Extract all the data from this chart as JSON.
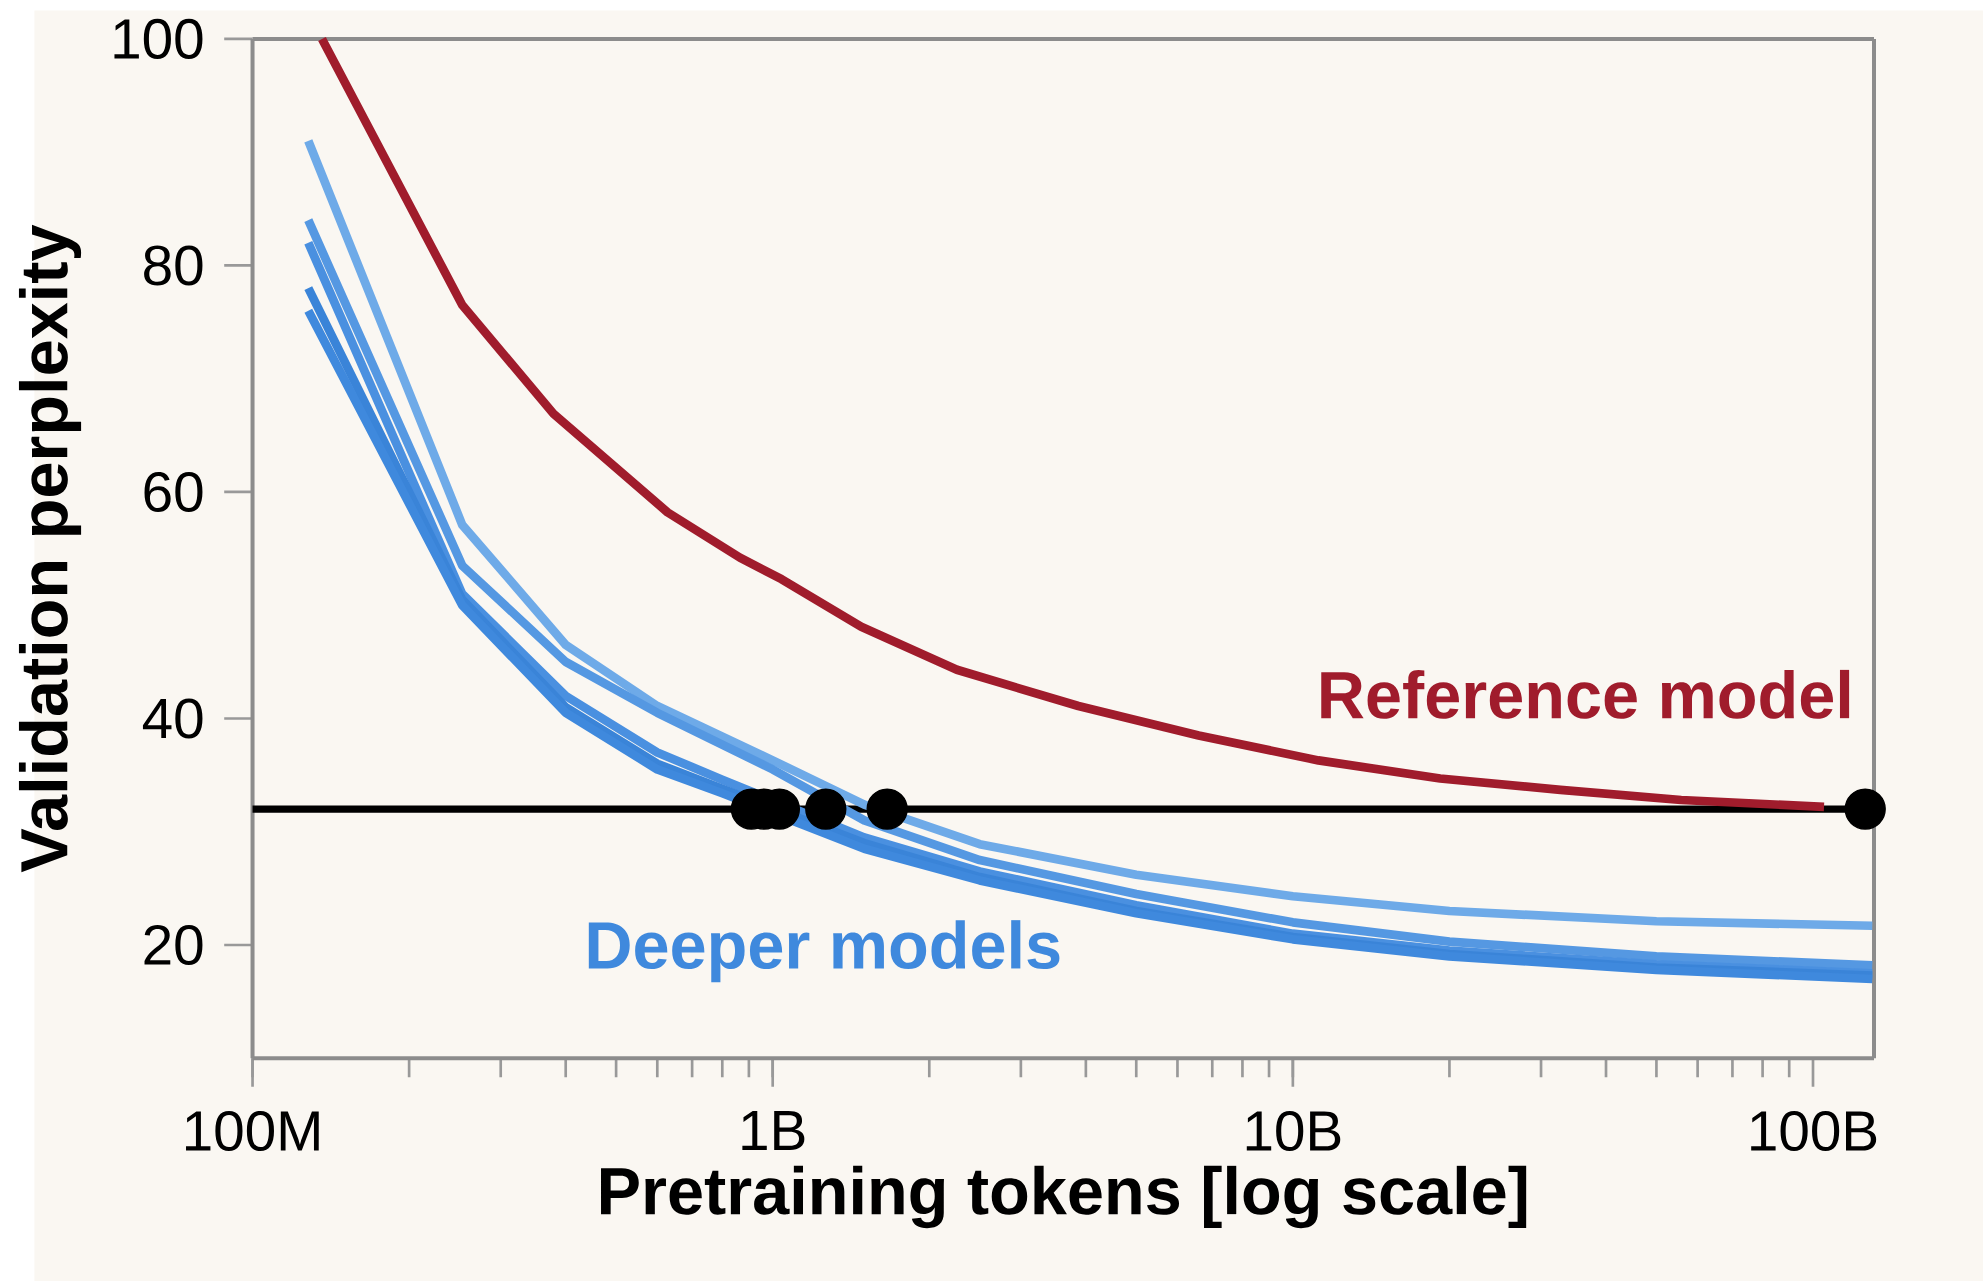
{
  "chart_data": {
    "type": "line",
    "xlabel": "Pretraining tokens   [log scale]",
    "ylabel": "Validation perplexity",
    "log": "x",
    "xlim": [
      100000000,
      131000000000
    ],
    "ylim": [
      10,
      100
    ],
    "xticks": [
      {
        "value": 100000000,
        "label": "100M"
      },
      {
        "value": 1000000000,
        "label": "1B"
      },
      {
        "value": 10000000000,
        "label": "10B"
      },
      {
        "value": 100000000000,
        "label": "100B"
      }
    ],
    "yticks": [
      20,
      40,
      60,
      80,
      100
    ],
    "grid": false,
    "ref_lines": [
      {
        "axis": "y",
        "value": 32,
        "color": "#000000"
      }
    ],
    "series": [
      {
        "name": "Reference model",
        "color": "#a01c2c",
        "x": [
          136000000,
          253000000,
          379000000,
          628000000,
          865000000,
          1040000000,
          1480000000,
          2260000000,
          3870000000,
          6590000000,
          11200000000,
          19200000000,
          32700000000,
          55800000000,
          105000000000
        ],
        "values": [
          100,
          76.5,
          66.9,
          58.2,
          54.2,
          52.3,
          48.1,
          44.3,
          41.1,
          38.5,
          36.3,
          34.7,
          33.7,
          32.8,
          32.2
        ]
      },
      {
        "name": "Deeper models",
        "color": "#3f89dd",
        "x": [
          128000000,
          253000000,
          400000000,
          600000000,
          800000000,
          1500000000,
          2500000000,
          5000000000,
          10000000000,
          20000000000,
          50000000000,
          130000000000
        ],
        "values": [
          76,
          50,
          40.5,
          35.5,
          33.4,
          28.5,
          25.7,
          22.8,
          20.5,
          19,
          17.8,
          17
        ]
      },
      {
        "color": "#3a84d8",
        "x": [
          128000000,
          253000000,
          400000000,
          600000000,
          800000000,
          1500000000,
          2500000000,
          5000000000,
          10000000000,
          20000000000,
          50000000000,
          130000000000
        ],
        "values": [
          78,
          50.5,
          41,
          36,
          33.8,
          29,
          26,
          23,
          20.7,
          19.2,
          18,
          17.3
        ]
      },
      {
        "color": "#4a90e0",
        "x": [
          128000000,
          253000000,
          400000000,
          600000000,
          800000000,
          1500000000,
          2500000000,
          5000000000,
          10000000000,
          20000000000,
          50000000000,
          130000000000
        ],
        "values": [
          82,
          51,
          42,
          37,
          34.6,
          29.5,
          26.5,
          23.5,
          21,
          19.5,
          18.3,
          17.5
        ]
      },
      {
        "color": "#5598e2",
        "x": [
          128000000,
          253000000,
          400000000,
          600000000,
          1000000000,
          1500000000,
          2500000000,
          5000000000,
          10000000000,
          20000000000,
          50000000000,
          130000000000
        ],
        "values": [
          84,
          53.5,
          45,
          40.5,
          35.5,
          31,
          27.5,
          24.5,
          22,
          20.3,
          19,
          18.2
        ]
      },
      {
        "color": "#6eaae8",
        "x": [
          128000000,
          253000000,
          400000000,
          600000000,
          1000000000,
          1500000000,
          2500000000,
          5000000000,
          10000000000,
          20000000000,
          50000000000,
          130000000000
        ],
        "values": [
          91,
          57.1,
          46.5,
          41.1,
          36.3,
          32.4,
          28.9,
          26.2,
          24.3,
          23,
          22.1,
          21.7
        ]
      },
      {
        "type": "scatter",
        "color": "#000000",
        "x": [
          910000000,
          963000000,
          1030000000,
          1265000000,
          1660000000,
          126000000000
        ],
        "values": [
          32,
          32,
          32,
          32,
          32,
          32
        ]
      }
    ]
  }
}
